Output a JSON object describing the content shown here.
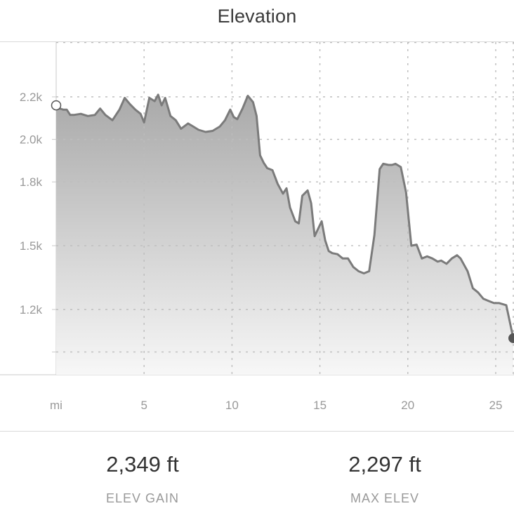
{
  "header": {
    "title": "Elevation"
  },
  "chart_data": {
    "type": "area",
    "title": "Elevation",
    "x_unit_label": "mi",
    "x_ticks": [
      5,
      10,
      15,
      20,
      25
    ],
    "x_tick_labels": [
      "5",
      "10",
      "15",
      "20",
      "25"
    ],
    "y_ticks": [
      1200,
      1500,
      1800,
      2000,
      2200
    ],
    "y_tick_labels": [
      "1.2k",
      "1.5k",
      "1.8k",
      "2.0k",
      "2.2k"
    ],
    "xlim": [
      0,
      26
    ],
    "ylim": [
      1000,
      2280
    ],
    "grid": true,
    "series": [
      {
        "x": [
          0,
          0.2,
          0.4,
          0.6,
          0.8,
          1.0,
          1.4,
          1.8,
          2.2,
          2.5,
          2.8,
          3.2,
          3.6,
          3.9,
          4.2,
          4.5,
          4.8,
          5.0,
          5.3,
          5.6,
          5.8,
          6.0,
          6.2,
          6.5,
          6.8,
          7.1,
          7.5,
          7.8,
          8.1,
          8.5,
          8.9,
          9.3,
          9.6,
          9.9,
          10.1,
          10.3,
          10.6,
          10.9,
          11.2,
          11.4,
          11.6,
          11.8,
          12.0,
          12.3,
          12.6,
          12.9,
          13.1,
          13.3,
          13.6,
          13.8,
          14.0,
          14.3,
          14.5,
          14.7,
          14.9,
          15.1,
          15.3,
          15.5,
          15.7,
          16.0,
          16.3,
          16.6,
          16.9,
          17.2,
          17.5,
          17.8,
          18.1,
          18.4,
          18.6,
          18.9,
          19.1,
          19.3,
          19.6,
          19.9,
          20.2,
          20.5,
          20.8,
          21.1,
          21.4,
          21.7,
          21.9,
          22.2,
          22.5,
          22.8,
          23.0,
          23.4,
          23.7,
          24.0,
          24.3,
          24.6,
          24.9,
          25.2,
          25.6,
          26.0
        ],
        "values": [
          2160,
          2145,
          2140,
          2140,
          2115,
          2115,
          2120,
          2110,
          2115,
          2145,
          2115,
          2090,
          2140,
          2195,
          2165,
          2140,
          2120,
          2080,
          2195,
          2180,
          2210,
          2160,
          2195,
          2110,
          2090,
          2050,
          2075,
          2060,
          2045,
          2035,
          2040,
          2060,
          2090,
          2140,
          2105,
          2095,
          2145,
          2205,
          2175,
          2110,
          1925,
          1890,
          1865,
          1855,
          1790,
          1745,
          1770,
          1680,
          1615,
          1605,
          1735,
          1760,
          1700,
          1545,
          1580,
          1615,
          1525,
          1475,
          1465,
          1460,
          1440,
          1440,
          1400,
          1380,
          1370,
          1380,
          1550,
          1860,
          1885,
          1880,
          1880,
          1885,
          1870,
          1750,
          1500,
          1505,
          1440,
          1450,
          1440,
          1425,
          1430,
          1415,
          1440,
          1455,
          1440,
          1380,
          1300,
          1280,
          1250,
          1240,
          1230,
          1230,
          1220,
          1065
        ]
      }
    ]
  },
  "stats": {
    "gain": {
      "value": "2,349 ft",
      "label": "ELEV GAIN"
    },
    "max": {
      "value": "2,297 ft",
      "label": "MAX ELEV"
    }
  }
}
